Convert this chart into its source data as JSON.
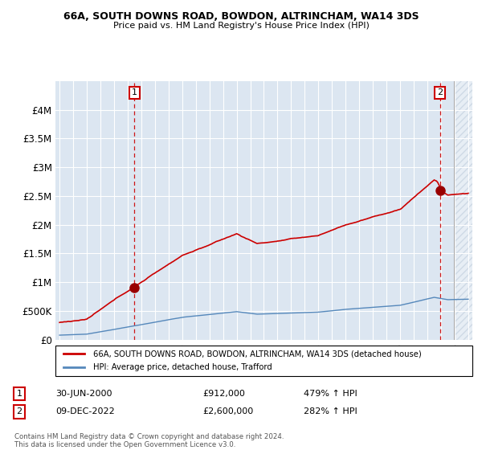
{
  "title1": "66A, SOUTH DOWNS ROAD, BOWDON, ALTRINCHAM, WA14 3DS",
  "title2": "Price paid vs. HM Land Registry's House Price Index (HPI)",
  "legend_label1": "66A, SOUTH DOWNS ROAD, BOWDON, ALTRINCHAM, WA14 3DS (detached house)",
  "legend_label2": "HPI: Average price, detached house, Trafford",
  "footnote": "Contains HM Land Registry data © Crown copyright and database right 2024.\nThis data is licensed under the Open Government Licence v3.0.",
  "table_row1": {
    "num": "1",
    "date": "30-JUN-2000",
    "price": "£912,000",
    "hpi": "479% ↑ HPI"
  },
  "table_row2": {
    "num": "2",
    "date": "09-DEC-2022",
    "price": "£2,600,000",
    "hpi": "282% ↑ HPI"
  },
  "ylim": [
    0,
    4500000
  ],
  "yticks": [
    0,
    500000,
    1000000,
    1500000,
    2000000,
    2500000,
    3000000,
    3500000,
    4000000
  ],
  "ytick_labels": [
    "£0",
    "£500K",
    "£1M",
    "£1.5M",
    "£2M",
    "£2.5M",
    "£3M",
    "£3.5M",
    "£4M"
  ],
  "bg_color": "#dce6f1",
  "hatch_color": "#c8d8e8",
  "grid_color": "#ffffff",
  "red_line_color": "#cc0000",
  "blue_line_color": "#5588bb",
  "marker_color": "#990000",
  "ann1_x": 2000.5,
  "ann1_y": 912000,
  "ann2_x": 2022.92,
  "ann2_y": 2600000,
  "xmin": 1994.7,
  "xmax": 2025.3
}
